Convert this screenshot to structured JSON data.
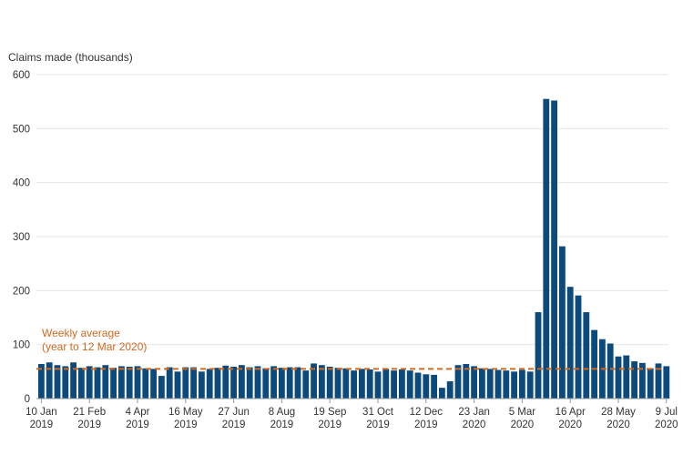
{
  "chart_data": {
    "type": "bar",
    "ylabel": "Claims made (thousands)",
    "ylim": [
      0,
      600
    ],
    "yticks": [
      0,
      100,
      200,
      300,
      400,
      500,
      600
    ],
    "grid": true,
    "x_tick_labels": [
      {
        "line1": "10 Jan",
        "line2": "2019",
        "index": 0
      },
      {
        "line1": "21 Feb",
        "line2": "2019",
        "index": 6
      },
      {
        "line1": "4 Apr",
        "line2": "2019",
        "index": 12
      },
      {
        "line1": "16 May",
        "line2": "2019",
        "index": 18
      },
      {
        "line1": "27 Jun",
        "line2": "2019",
        "index": 24
      },
      {
        "line1": "8 Aug",
        "line2": "2019",
        "index": 30
      },
      {
        "line1": "19 Sep",
        "line2": "2019",
        "index": 36
      },
      {
        "line1": "31 Oct",
        "line2": "2019",
        "index": 42
      },
      {
        "line1": "12 Dec",
        "line2": "2019",
        "index": 48
      },
      {
        "line1": "23 Jan",
        "line2": "2020",
        "index": 54
      },
      {
        "line1": "5 Mar",
        "line2": "2020",
        "index": 60
      },
      {
        "line1": "16 Apr",
        "line2": "2020",
        "index": 66
      },
      {
        "line1": "28 May",
        "line2": "2020",
        "index": 72
      },
      {
        "line1": "9 Jul",
        "line2": "2020",
        "index": 78
      }
    ],
    "values": [
      64,
      67,
      62,
      60,
      67,
      57,
      60,
      58,
      62,
      57,
      60,
      59,
      60,
      56,
      55,
      42,
      58,
      50,
      58,
      58,
      50,
      55,
      57,
      61,
      59,
      62,
      58,
      60,
      56,
      60,
      57,
      58,
      58,
      52,
      65,
      62,
      59,
      57,
      56,
      52,
      55,
      54,
      50,
      55,
      52,
      54,
      52,
      48,
      45,
      44,
      20,
      32,
      62,
      64,
      60,
      56,
      55,
      53,
      52,
      50,
      53,
      50,
      160,
      555,
      552,
      282,
      207,
      191,
      160,
      127,
      110,
      102,
      78,
      80,
      69,
      66,
      56,
      65,
      60
    ],
    "average": {
      "value": 55,
      "label_line1": "Weekly average",
      "label_line2": "(year to 12 Mar 2020)"
    },
    "colors": {
      "bar": "#0b4a7a",
      "average": "#d2691e",
      "grid": "#e6e6e6",
      "axis": "#999999",
      "text": "#333333"
    }
  }
}
